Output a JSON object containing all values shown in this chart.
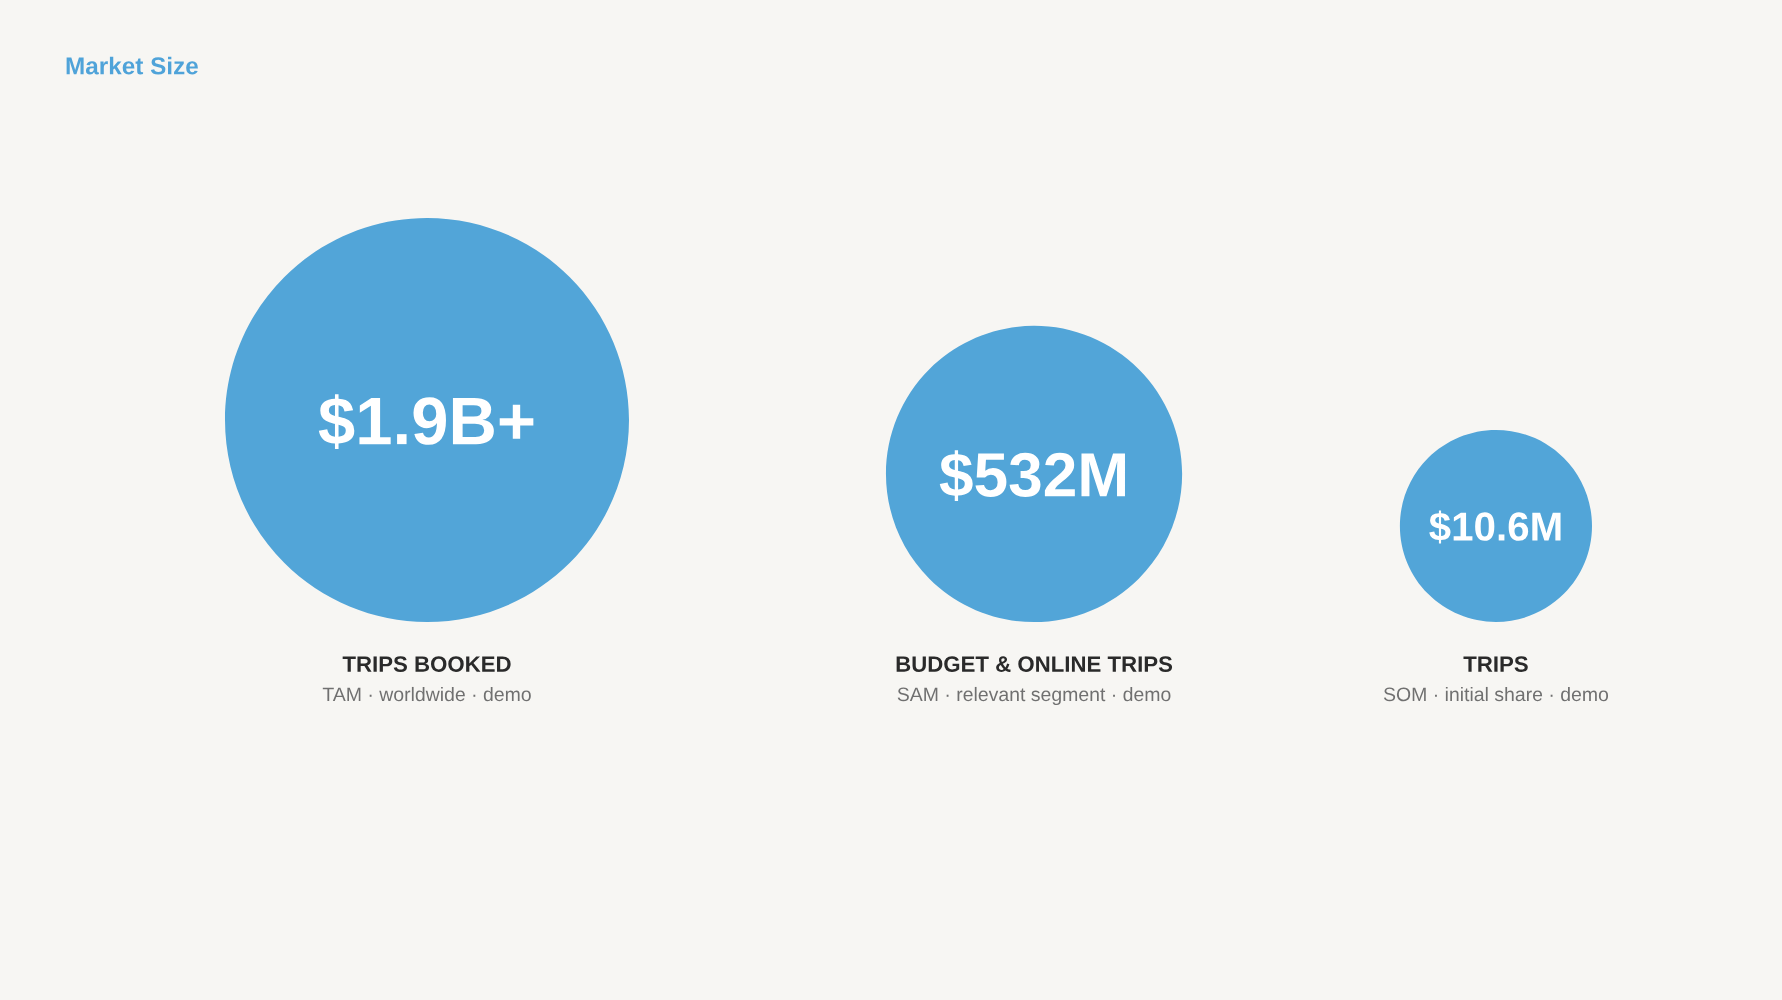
{
  "chart_data": {
    "type": "other",
    "title": "Market Size",
    "categories": [
      "TRIPS BOOKED",
      "BUDGET & ONLINE TRIPS",
      "TRIPS"
    ],
    "values": [
      1900000000,
      532000000,
      10600000
    ],
    "value_labels": [
      "$1.9B+",
      "$532M",
      "$10.6M"
    ],
    "color": "#52a5d8",
    "annotations": [
      "TAM · worldwide · demo",
      "SAM · relevant segment · demo",
      "SOM · initial share · demo"
    ]
  }
}
